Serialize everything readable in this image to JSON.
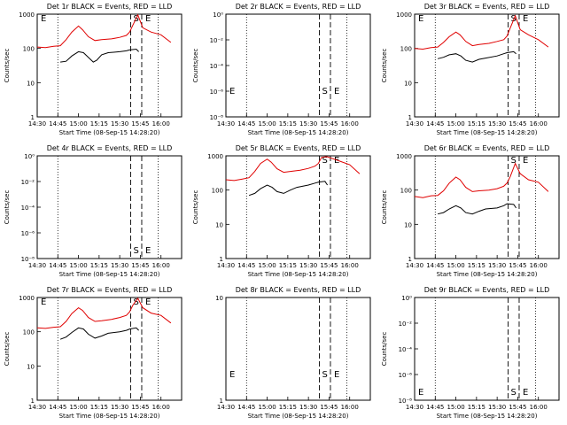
{
  "figure": {
    "background": "#ffffff",
    "event_color": "#000000",
    "lld_color": "#e00000"
  },
  "chart_data": [
    {
      "type": "line",
      "title": "Det 1r BLACK = Events, RED = LLD",
      "xlabel": "Start Time (08-Sep-15 14:28:20)",
      "ylabel": "Counts/sec",
      "x_tick_labels": [
        "14:30",
        "14:45",
        "15:00",
        "15:15",
        "15:30",
        "15:45",
        "16:00"
      ],
      "y_scale": "log",
      "y_tick_labels": [
        "1",
        "10",
        "100",
        "1000"
      ],
      "ylim": [
        1,
        1000
      ],
      "markers": {
        "dotted_times": [
          "14:45",
          "15:58"
        ],
        "dashed_times": [
          "15:38",
          "15:46"
        ],
        "labels": [
          "E",
          "S",
          "E"
        ]
      },
      "series": [
        {
          "name": "Events",
          "color": "#000000",
          "points": [
            [
              14.78,
              40
            ],
            [
              14.85,
              42
            ],
            [
              14.92,
              60
            ],
            [
              15.0,
              80
            ],
            [
              15.06,
              75
            ],
            [
              15.12,
              55
            ],
            [
              15.18,
              40
            ],
            [
              15.22,
              45
            ],
            [
              15.28,
              65
            ],
            [
              15.36,
              75
            ],
            [
              15.5,
              80
            ],
            [
              15.58,
              85
            ],
            [
              15.62,
              90
            ],
            [
              15.7,
              95
            ],
            [
              15.73,
              80
            ]
          ]
        },
        {
          "name": "LLD",
          "color": "#e00000",
          "points": [
            [
              14.5,
              110
            ],
            [
              14.6,
              105
            ],
            [
              14.7,
              115
            ],
            [
              14.78,
              120
            ],
            [
              14.85,
              180
            ],
            [
              14.92,
              300
            ],
            [
              15.0,
              450
            ],
            [
              15.05,
              350
            ],
            [
              15.12,
              220
            ],
            [
              15.2,
              170
            ],
            [
              15.28,
              180
            ],
            [
              15.4,
              190
            ],
            [
              15.5,
              210
            ],
            [
              15.58,
              240
            ],
            [
              15.62,
              300
            ],
            [
              15.66,
              480
            ],
            [
              15.72,
              950
            ],
            [
              15.78,
              400
            ],
            [
              15.88,
              300
            ],
            [
              16.0,
              250
            ],
            [
              16.12,
              150
            ]
          ]
        }
      ]
    },
    {
      "type": "line",
      "title": "Det 2r BLACK = Events, RED = LLD",
      "xlabel": "Start Time (08-Sep-15 14:28:20)",
      "ylabel": "Counts/sec",
      "x_tick_labels": [
        "14:30",
        "14:45",
        "15:00",
        "15:15",
        "15:30",
        "15:45",
        "16:00"
      ],
      "y_scale": "log",
      "y_tick_labels": [
        "10⁻⁸",
        "10⁻⁶",
        "10⁻⁴",
        "10⁻²",
        "10⁰"
      ],
      "ylim": [
        1e-08,
        1.0
      ],
      "markers": {
        "dotted_times": [
          "14:45",
          "15:58"
        ],
        "dashed_times": [
          "15:38",
          "15:46"
        ],
        "labels": [
          "E",
          "S",
          "E"
        ]
      },
      "series": []
    },
    {
      "type": "line",
      "title": "Det 3r BLACK = Events, RED = LLD",
      "xlabel": "Start Time (08-Sep-15 14:28:20)",
      "ylabel": "Counts/sec",
      "x_tick_labels": [
        "14:30",
        "14:45",
        "15:00",
        "15:15",
        "15:30",
        "15:45",
        "16:00"
      ],
      "y_scale": "log",
      "y_tick_labels": [
        "1",
        "10",
        "100",
        "1000"
      ],
      "ylim": [
        1,
        1000
      ],
      "markers": {
        "dotted_times": [
          "14:45",
          "15:58"
        ],
        "dashed_times": [
          "15:38",
          "15:46"
        ],
        "labels": [
          "E",
          "S",
          "E"
        ]
      },
      "series": [
        {
          "name": "Events",
          "color": "#000000",
          "points": [
            [
              14.78,
              50
            ],
            [
              14.85,
              55
            ],
            [
              14.92,
              65
            ],
            [
              15.0,
              70
            ],
            [
              15.06,
              60
            ],
            [
              15.12,
              45
            ],
            [
              15.2,
              40
            ],
            [
              15.28,
              48
            ],
            [
              15.36,
              52
            ],
            [
              15.5,
              60
            ],
            [
              15.58,
              70
            ],
            [
              15.62,
              75
            ],
            [
              15.7,
              80
            ],
            [
              15.73,
              70
            ]
          ]
        },
        {
          "name": "LLD",
          "color": "#e00000",
          "points": [
            [
              14.5,
              100
            ],
            [
              14.6,
              95
            ],
            [
              14.7,
              105
            ],
            [
              14.78,
              110
            ],
            [
              14.85,
              150
            ],
            [
              14.92,
              220
            ],
            [
              15.0,
              300
            ],
            [
              15.05,
              250
            ],
            [
              15.12,
              160
            ],
            [
              15.2,
              120
            ],
            [
              15.28,
              130
            ],
            [
              15.4,
              140
            ],
            [
              15.5,
              160
            ],
            [
              15.58,
              180
            ],
            [
              15.62,
              230
            ],
            [
              15.66,
              400
            ],
            [
              15.72,
              900
            ],
            [
              15.78,
              350
            ],
            [
              15.88,
              250
            ],
            [
              16.0,
              180
            ],
            [
              16.12,
              110
            ]
          ]
        }
      ]
    },
    {
      "type": "line",
      "title": "Det 4r BLACK = Events, RED = LLD",
      "xlabel": "Start Time (08-Sep-15 14:28:20)",
      "ylabel": "Counts/sec",
      "x_tick_labels": [
        "14:30",
        "14:45",
        "15:00",
        "15:15",
        "15:30",
        "15:45",
        "16:00"
      ],
      "y_scale": "log",
      "y_tick_labels": [
        "10⁻⁸",
        "10⁻⁶",
        "10⁻⁴",
        "10⁻²",
        "10⁰"
      ],
      "ylim": [
        1e-08,
        1.0
      ],
      "markers": {
        "dotted_times": [
          "14:45",
          "15:58"
        ],
        "dashed_times": [
          "15:38",
          "15:46"
        ],
        "labels": [
          "S",
          "E"
        ]
      },
      "series": []
    },
    {
      "type": "line",
      "title": "Det 5r BLACK = Events, RED = LLD",
      "xlabel": "Start Time (08-Sep-15 14:28:20)",
      "ylabel": "Counts/sec",
      "x_tick_labels": [
        "14:30",
        "14:45",
        "15:00",
        "15:15",
        "15:30",
        "15:45",
        "16:00"
      ],
      "y_scale": "log",
      "y_tick_labels": [
        "1",
        "10",
        "100",
        "1000"
      ],
      "ylim": [
        1,
        1000
      ],
      "markers": {
        "dotted_times": [
          "14:45",
          "15:58"
        ],
        "dashed_times": [
          "15:38",
          "15:46"
        ],
        "labels": [
          "S",
          "E"
        ]
      },
      "series": [
        {
          "name": "Events",
          "color": "#000000",
          "points": [
            [
              14.78,
              70
            ],
            [
              14.85,
              80
            ],
            [
              14.92,
              110
            ],
            [
              15.0,
              140
            ],
            [
              15.06,
              120
            ],
            [
              15.12,
              90
            ],
            [
              15.2,
              80
            ],
            [
              15.28,
              100
            ],
            [
              15.36,
              120
            ],
            [
              15.5,
              140
            ],
            [
              15.58,
              160
            ],
            [
              15.62,
              170
            ],
            [
              15.7,
              180
            ],
            [
              15.73,
              140
            ]
          ]
        },
        {
          "name": "LLD",
          "color": "#e00000",
          "points": [
            [
              14.5,
              200
            ],
            [
              14.6,
              190
            ],
            [
              14.7,
              210
            ],
            [
              14.78,
              230
            ],
            [
              14.85,
              350
            ],
            [
              14.92,
              600
            ],
            [
              15.0,
              800
            ],
            [
              15.05,
              650
            ],
            [
              15.12,
              420
            ],
            [
              15.2,
              330
            ],
            [
              15.28,
              350
            ],
            [
              15.4,
              380
            ],
            [
              15.5,
              430
            ],
            [
              15.58,
              500
            ],
            [
              15.62,
              600
            ],
            [
              15.66,
              900
            ],
            [
              15.72,
              950
            ],
            [
              15.78,
              850
            ],
            [
              15.88,
              700
            ],
            [
              16.0,
              550
            ],
            [
              16.12,
              300
            ]
          ]
        }
      ]
    },
    {
      "type": "line",
      "title": "Det 6r BLACK = Events, RED = LLD",
      "xlabel": "Start Time (08-Sep-15 14:28:20)",
      "ylabel": "Counts/sec",
      "x_tick_labels": [
        "14:30",
        "14:45",
        "15:00",
        "15:15",
        "15:30",
        "15:45",
        "16:00"
      ],
      "y_scale": "log",
      "y_tick_labels": [
        "1",
        "10",
        "100",
        "1000"
      ],
      "ylim": [
        1,
        1000
      ],
      "markers": {
        "dotted_times": [
          "14:45",
          "15:58"
        ],
        "dashed_times": [
          "15:38",
          "15:46"
        ],
        "labels": [
          "S",
          "E"
        ]
      },
      "series": [
        {
          "name": "Events",
          "color": "#000000",
          "points": [
            [
              14.78,
              20
            ],
            [
              14.85,
              22
            ],
            [
              14.92,
              28
            ],
            [
              15.0,
              35
            ],
            [
              15.06,
              30
            ],
            [
              15.12,
              22
            ],
            [
              15.2,
              20
            ],
            [
              15.28,
              24
            ],
            [
              15.36,
              28
            ],
            [
              15.5,
              30
            ],
            [
              15.58,
              35
            ],
            [
              15.62,
              40
            ],
            [
              15.7,
              38
            ],
            [
              15.73,
              30
            ]
          ]
        },
        {
          "name": "LLD",
          "color": "#e00000",
          "points": [
            [
              14.5,
              65
            ],
            [
              14.6,
              60
            ],
            [
              14.7,
              68
            ],
            [
              14.78,
              70
            ],
            [
              14.85,
              95
            ],
            [
              14.92,
              160
            ],
            [
              15.0,
              240
            ],
            [
              15.05,
              200
            ],
            [
              15.12,
              120
            ],
            [
              15.2,
              90
            ],
            [
              15.28,
              95
            ],
            [
              15.4,
              100
            ],
            [
              15.5,
              110
            ],
            [
              15.58,
              130
            ],
            [
              15.62,
              160
            ],
            [
              15.66,
              250
            ],
            [
              15.72,
              600
            ],
            [
              15.78,
              300
            ],
            [
              15.88,
              200
            ],
            [
              16.0,
              170
            ],
            [
              16.12,
              90
            ]
          ]
        }
      ]
    },
    {
      "type": "line",
      "title": "Det 7r BLACK = Events, RED = LLD",
      "xlabel": "Start Time (08-Sep-15 14:28:20)",
      "ylabel": "Counts/sec",
      "x_tick_labels": [
        "14:30",
        "14:45",
        "15:00",
        "15:15",
        "15:30",
        "15:45",
        "16:00"
      ],
      "y_scale": "log",
      "y_tick_labels": [
        "1",
        "10",
        "100",
        "1000"
      ],
      "ylim": [
        1,
        1000
      ],
      "markers": {
        "dotted_times": [
          "14:45",
          "15:58"
        ],
        "dashed_times": [
          "15:38",
          "15:46"
        ],
        "labels": [
          "E",
          "S",
          "E"
        ]
      },
      "series": [
        {
          "name": "Events",
          "color": "#000000",
          "points": [
            [
              14.78,
              60
            ],
            [
              14.85,
              70
            ],
            [
              14.92,
              95
            ],
            [
              15.0,
              130
            ],
            [
              15.06,
              120
            ],
            [
              15.12,
              85
            ],
            [
              15.2,
              65
            ],
            [
              15.28,
              75
            ],
            [
              15.36,
              90
            ],
            [
              15.5,
              100
            ],
            [
              15.58,
              110
            ],
            [
              15.62,
              120
            ],
            [
              15.7,
              130
            ],
            [
              15.73,
              110
            ]
          ]
        },
        {
          "name": "LLD",
          "color": "#e00000",
          "points": [
            [
              14.5,
              130
            ],
            [
              14.6,
              125
            ],
            [
              14.7,
              135
            ],
            [
              14.78,
              140
            ],
            [
              14.85,
              200
            ],
            [
              14.92,
              340
            ],
            [
              15.0,
              500
            ],
            [
              15.05,
              420
            ],
            [
              15.12,
              260
            ],
            [
              15.2,
              200
            ],
            [
              15.28,
              210
            ],
            [
              15.4,
              230
            ],
            [
              15.5,
              260
            ],
            [
              15.58,
              300
            ],
            [
              15.62,
              380
            ],
            [
              15.66,
              600
            ],
            [
              15.72,
              950
            ],
            [
              15.78,
              500
            ],
            [
              15.88,
              350
            ],
            [
              16.0,
              300
            ],
            [
              16.12,
              180
            ]
          ]
        }
      ]
    },
    {
      "type": "line",
      "title": "Det 8r BLACK = Events, RED = LLD",
      "xlabel": "Start Time (08-Sep-15 14:28:20)",
      "ylabel": "",
      "x_tick_labels": [
        "14:30",
        "14:45",
        "15:00",
        "15:15",
        "15:30",
        "15:45",
        "16:00"
      ],
      "y_scale": "log",
      "y_tick_labels": [
        "1",
        "10"
      ],
      "ylim": [
        1,
        10
      ],
      "markers": {
        "dotted_times": [
          "14:45",
          "15:58"
        ],
        "dashed_times": [
          "15:38",
          "15:46"
        ],
        "labels": [
          "E",
          "S",
          "E"
        ]
      },
      "series": []
    },
    {
      "type": "line",
      "title": "Det 9r BLACK = Events, RED = LLD",
      "xlabel": "Start Time (08-Sep-15 14:28:20)",
      "ylabel": "Counts/sec",
      "x_tick_labels": [
        "14:30",
        "14:45",
        "15:00",
        "15:15",
        "15:30",
        "15:45",
        "16:00"
      ],
      "y_scale": "log",
      "y_tick_labels": [
        "10⁻⁸",
        "10⁻⁶",
        "10⁻⁴",
        "10⁻²",
        "10⁰"
      ],
      "ylim": [
        1e-08,
        1.0
      ],
      "markers": {
        "dotted_times": [
          "14:45",
          "15:58"
        ],
        "dashed_times": [
          "15:38",
          "15:46"
        ],
        "labels": [
          "E",
          "S",
          "E"
        ]
      },
      "series": []
    }
  ]
}
